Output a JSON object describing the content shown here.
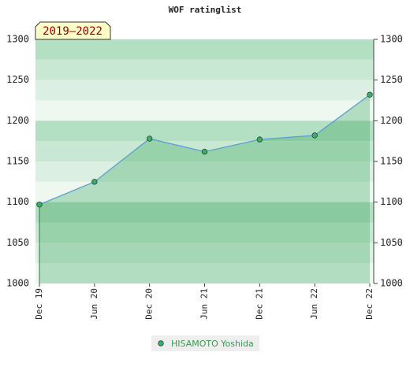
{
  "chart_data": {
    "type": "line",
    "title": "WOF ratinglist",
    "period_label": "2019–2022",
    "categories": [
      "Dec 19",
      "Jun 20",
      "Dec 20",
      "Jun 21",
      "Dec 21",
      "Jun 22",
      "Dec 22"
    ],
    "series": [
      {
        "name": "HISAMOTO Yoshida",
        "color": "#5aa0d0",
        "marker_color": "#3cb060",
        "values": [
          1097,
          1125,
          1178,
          1162,
          1177,
          1182,
          1232
        ]
      }
    ],
    "ylim": [
      1000,
      1300
    ],
    "yticks": [
      1000,
      1050,
      1100,
      1150,
      1200,
      1250,
      1300
    ],
    "grid": false
  }
}
